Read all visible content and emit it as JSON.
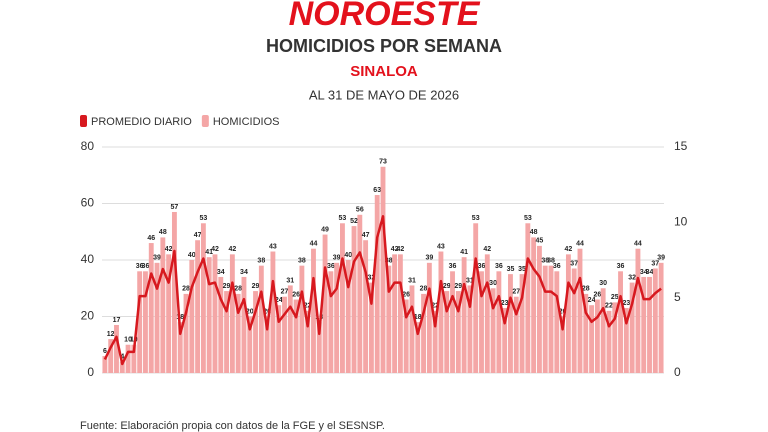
{
  "brand": "NOROESTE",
  "chart_data": {
    "type": "bar",
    "title": "HOMICIDIOS POR SEMANA",
    "subtitle": "SINALOA",
    "date_note": "AL 31 DE MAYO DE 2026",
    "source": "Fuente: Elaboración propia con datos de la FGE y el SESNSP.",
    "categories": [
      null,
      null,
      null,
      null,
      null,
      null,
      null,
      null,
      null,
      null,
      null,
      null,
      null,
      null,
      null,
      null,
      null,
      null,
      null,
      null,
      null,
      null,
      null,
      null,
      null,
      null,
      null,
      null,
      null,
      null,
      null,
      null,
      null,
      null,
      null,
      null,
      null,
      null,
      null,
      null,
      null,
      null,
      null,
      null,
      null,
      null,
      null,
      null,
      null,
      null,
      null,
      null,
      null,
      null,
      null,
      null,
      null,
      null,
      null,
      null,
      null,
      null,
      null,
      null,
      null,
      null,
      null,
      null,
      null,
      null,
      null,
      null,
      null,
      null,
      null,
      null,
      null,
      null,
      null,
      null,
      null,
      null,
      null,
      null,
      null,
      null,
      null,
      null,
      null,
      null,
      null,
      null,
      null,
      null,
      null,
      null,
      null
    ],
    "series": [
      {
        "name": "PROMEDIO DIARIO",
        "color": "#d7191f",
        "axis": "y2",
        "values": [
          0.9,
          1.7,
          2.4,
          0.6,
          1.4,
          1.4,
          5.1,
          5.1,
          6.6,
          5.6,
          6.9,
          6,
          8.1,
          2.6,
          4,
          5.7,
          6.7,
          7.6,
          5.9,
          6,
          4.9,
          4.1,
          6,
          4,
          4.9,
          2.9,
          4.1,
          5.4,
          2.9,
          6.1,
          3.4,
          3.9,
          4.4,
          3.7,
          5.4,
          3.1,
          6.3,
          2.6,
          7,
          5.1,
          5.6,
          7.6,
          5.7,
          7.4,
          8,
          6.7,
          4.6,
          9,
          10.4,
          5.4,
          6,
          6,
          3.7,
          4.4,
          2.6,
          4,
          5.6,
          3.1,
          6.1,
          4.1,
          5.1,
          4.1,
          5.9,
          4.4,
          7.6,
          5.1,
          6,
          4.3,
          5.1,
          3.3,
          5,
          3.9,
          5,
          7.6,
          6.9,
          6.4,
          5.4,
          5.4,
          5.1,
          2.9,
          6,
          5.3,
          6.3,
          4,
          3.4,
          3.7,
          4.3,
          3.1,
          3.6,
          5.1,
          3.3,
          4.6,
          6.3,
          4.9,
          4.9,
          5.3,
          5.6
        ]
      },
      {
        "name": "HOMICIDIOS",
        "color": "#f4a6a6",
        "values": [
          6,
          12,
          17,
          4,
          10,
          10,
          36,
          36,
          46,
          39,
          48,
          42,
          57,
          18,
          28,
          40,
          47,
          53,
          41,
          42,
          34,
          29,
          42,
          28,
          34,
          20,
          29,
          38,
          20,
          43,
          24,
          27,
          31,
          26,
          38,
          22,
          44,
          18,
          49,
          36,
          39,
          53,
          40,
          52,
          56,
          47,
          32,
          63,
          73,
          38,
          42,
          42,
          26,
          31,
          18,
          28,
          39,
          22,
          43,
          29,
          36,
          29,
          41,
          31,
          53,
          36,
          42,
          30,
          36,
          23,
          35,
          27,
          35,
          53,
          48,
          45,
          38,
          38,
          36,
          20,
          42,
          37,
          44,
          28,
          24,
          26,
          30,
          22,
          25,
          36,
          23,
          32,
          44,
          34,
          34,
          37,
          39
        ]
      }
    ],
    "ylim": [
      0,
      80
    ],
    "yticks": [
      0,
      20,
      40,
      60,
      80
    ],
    "y2lim": [
      0,
      15
    ],
    "y2ticks": [
      0,
      5,
      10,
      15
    ],
    "grid": true
  }
}
